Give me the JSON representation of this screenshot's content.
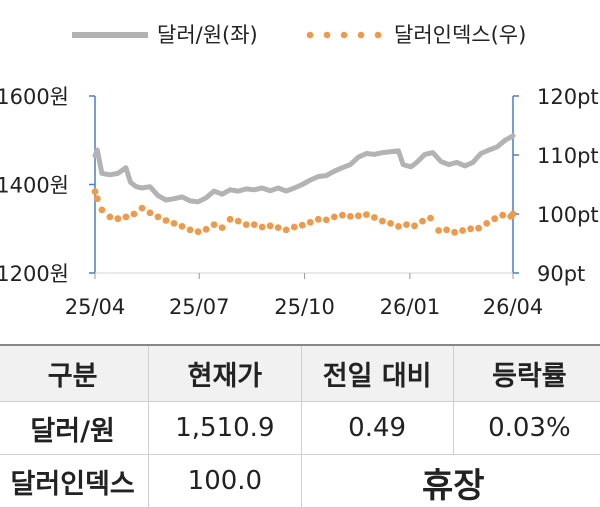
{
  "chart_data": {
    "type": "line",
    "x_ticks": [
      "25/04",
      "25/07",
      "25/10",
      "26/01",
      "26/04"
    ],
    "y_left": {
      "ticks": [
        1200,
        1400,
        1600
      ],
      "tick_labels": [
        "1200원",
        "1400원",
        "1600원"
      ],
      "range": [
        1200,
        1600
      ]
    },
    "y_right": {
      "ticks": [
        90,
        100,
        110,
        120
      ],
      "tick_labels": [
        "90pt",
        "100pt",
        "110pt",
        "120pt"
      ],
      "range": [
        90,
        120
      ]
    },
    "legend_position": "top",
    "series": [
      {
        "name": "달러/원(좌)",
        "axis": "left",
        "style": "line",
        "color": "#b3b3b3",
        "points": [
          [
            "2025-04-01",
            1465
          ],
          [
            "2025-04-03",
            1478
          ],
          [
            "2025-04-07",
            1425
          ],
          [
            "2025-04-14",
            1422
          ],
          [
            "2025-04-21",
            1425
          ],
          [
            "2025-04-28",
            1438
          ],
          [
            "2025-05-02",
            1405
          ],
          [
            "2025-05-07",
            1395
          ],
          [
            "2025-05-12",
            1392
          ],
          [
            "2025-05-19",
            1395
          ],
          [
            "2025-05-26",
            1375
          ],
          [
            "2025-06-02",
            1365
          ],
          [
            "2025-06-09",
            1368
          ],
          [
            "2025-06-16",
            1372
          ],
          [
            "2025-06-23",
            1363
          ],
          [
            "2025-06-30",
            1361
          ],
          [
            "2025-07-07",
            1370
          ],
          [
            "2025-07-14",
            1385
          ],
          [
            "2025-07-21",
            1378
          ],
          [
            "2025-07-28",
            1388
          ],
          [
            "2025-08-04",
            1385
          ],
          [
            "2025-08-11",
            1390
          ],
          [
            "2025-08-18",
            1388
          ],
          [
            "2025-08-25",
            1392
          ],
          [
            "2025-09-01",
            1386
          ],
          [
            "2025-09-08",
            1392
          ],
          [
            "2025-09-15",
            1385
          ],
          [
            "2025-09-22",
            1392
          ],
          [
            "2025-09-29",
            1400
          ],
          [
            "2025-10-06",
            1410
          ],
          [
            "2025-10-13",
            1418
          ],
          [
            "2025-10-20",
            1420
          ],
          [
            "2025-10-27",
            1430
          ],
          [
            "2025-11-03",
            1438
          ],
          [
            "2025-11-10",
            1445
          ],
          [
            "2025-11-17",
            1462
          ],
          [
            "2025-11-24",
            1470
          ],
          [
            "2025-12-01",
            1468
          ],
          [
            "2025-12-08",
            1472
          ],
          [
            "2025-12-15",
            1474
          ],
          [
            "2025-12-22",
            1476
          ],
          [
            "2025-12-26",
            1445
          ],
          [
            "2026-01-02",
            1440
          ],
          [
            "2026-01-07",
            1450
          ],
          [
            "2026-01-14",
            1468
          ],
          [
            "2026-01-21",
            1472
          ],
          [
            "2026-01-28",
            1452
          ],
          [
            "2026-02-04",
            1445
          ],
          [
            "2026-02-11",
            1450
          ],
          [
            "2026-02-18",
            1442
          ],
          [
            "2026-02-25",
            1450
          ],
          [
            "2026-03-04",
            1470
          ],
          [
            "2026-03-11",
            1478
          ],
          [
            "2026-03-18",
            1485
          ],
          [
            "2026-03-25",
            1500
          ],
          [
            "2026-04-01",
            1510
          ]
        ]
      },
      {
        "name": "달러인덱스(우)",
        "axis": "right",
        "style": "dotted",
        "color": "#ef9a4a",
        "points": [
          [
            "2025-04-01",
            103.8
          ],
          [
            "2025-04-03",
            102.6
          ],
          [
            "2025-04-07",
            100.7
          ],
          [
            "2025-04-14",
            99.5
          ],
          [
            "2025-04-21",
            99.2
          ],
          [
            "2025-04-28",
            99.5
          ],
          [
            "2025-05-05",
            100.0
          ],
          [
            "2025-05-12",
            101.0
          ],
          [
            "2025-05-19",
            100.2
          ],
          [
            "2025-05-26",
            99.5
          ],
          [
            "2025-06-02",
            98.9
          ],
          [
            "2025-06-09",
            98.4
          ],
          [
            "2025-06-16",
            97.9
          ],
          [
            "2025-06-23",
            97.3
          ],
          [
            "2025-06-30",
            97.0
          ],
          [
            "2025-07-07",
            97.4
          ],
          [
            "2025-07-14",
            98.2
          ],
          [
            "2025-07-21",
            97.7
          ],
          [
            "2025-07-28",
            99.1
          ],
          [
            "2025-08-04",
            98.8
          ],
          [
            "2025-08-11",
            98.2
          ],
          [
            "2025-08-18",
            98.2
          ],
          [
            "2025-08-25",
            97.8
          ],
          [
            "2025-09-01",
            98.0
          ],
          [
            "2025-09-08",
            97.7
          ],
          [
            "2025-09-15",
            97.3
          ],
          [
            "2025-09-22",
            97.8
          ],
          [
            "2025-09-29",
            98.1
          ],
          [
            "2025-10-06",
            98.6
          ],
          [
            "2025-10-13",
            99.1
          ],
          [
            "2025-10-20",
            99.0
          ],
          [
            "2025-10-27",
            99.5
          ],
          [
            "2025-11-03",
            99.8
          ],
          [
            "2025-11-10",
            99.6
          ],
          [
            "2025-11-17",
            99.7
          ],
          [
            "2025-11-24",
            99.9
          ],
          [
            "2025-12-01",
            99.4
          ],
          [
            "2025-12-08",
            98.8
          ],
          [
            "2025-12-15",
            98.4
          ],
          [
            "2025-12-22",
            97.9
          ],
          [
            "2025-12-29",
            98.2
          ],
          [
            "2026-01-05",
            98.0
          ],
          [
            "2026-01-12",
            98.8
          ],
          [
            "2026-01-19",
            99.3
          ],
          [
            "2026-01-26",
            97.2
          ],
          [
            "2026-02-02",
            97.3
          ],
          [
            "2026-02-09",
            96.9
          ],
          [
            "2026-02-16",
            97.2
          ],
          [
            "2026-02-23",
            97.5
          ],
          [
            "2026-03-02",
            97.6
          ],
          [
            "2026-03-09",
            98.4
          ],
          [
            "2026-03-16",
            99.2
          ],
          [
            "2026-03-23",
            99.8
          ],
          [
            "2026-03-30",
            99.6
          ],
          [
            "2026-04-01",
            100.0
          ]
        ]
      }
    ]
  },
  "table": {
    "headers": [
      "구분",
      "현재가",
      "전일 대비",
      "등락률"
    ],
    "rows": [
      {
        "label": "달러/원",
        "price": "1,510.9",
        "change": "0.49",
        "rate": "0.03%"
      },
      {
        "label": "달러인덱스",
        "price": "100.0",
        "status": "휴장"
      }
    ]
  }
}
